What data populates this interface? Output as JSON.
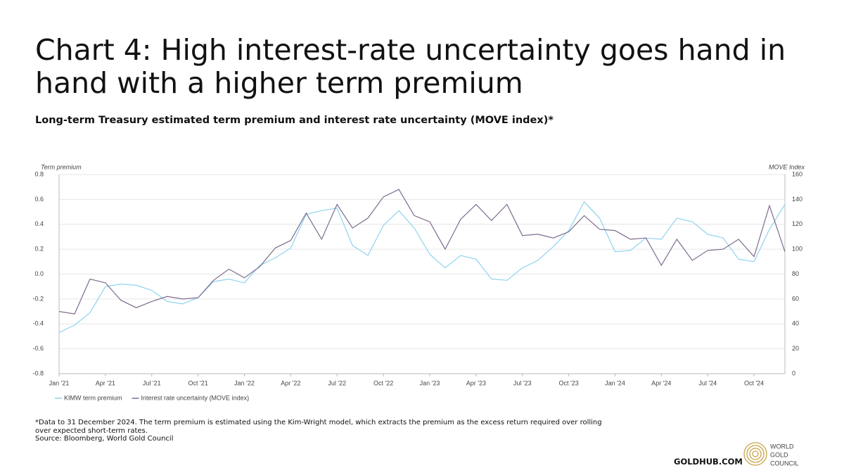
{
  "chart_data": {
    "type": "line",
    "title": "Chart 4: High interest-rate uncertainty goes hand in hand with a higher term premium",
    "subtitle": "Long-term Treasury estimated term premium and interest rate uncertainty (MOVE index)*",
    "ylabel": "Term premium",
    "y2label": "MOVE Index",
    "categories": [
      "Jan '21",
      null,
      null,
      "Apr '21",
      null,
      null,
      "Jul '21",
      null,
      null,
      "Oct '21",
      null,
      null,
      "Jan '22",
      null,
      null,
      "Apr '22",
      null,
      null,
      "Jul '22",
      null,
      null,
      "Oct '22",
      null,
      null,
      "Jan '23",
      null,
      null,
      "Apr '23",
      null,
      null,
      "Jul '23",
      null,
      null,
      "Oct '23",
      null,
      null,
      "Jan '24",
      null,
      null,
      "Apr '24",
      null,
      null,
      "Jul '24",
      null,
      null,
      "Oct '24",
      null,
      null
    ],
    "series": [
      {
        "name": "KIMW term premium",
        "color": "#8fd3f0",
        "values": [
          -0.47,
          -0.41,
          -0.31,
          -0.1,
          -0.08,
          -0.09,
          -0.13,
          -0.22,
          -0.24,
          -0.19,
          -0.06,
          -0.04,
          -0.07,
          0.07,
          0.13,
          0.21,
          0.48,
          0.51,
          0.53,
          0.23,
          0.15,
          0.39,
          0.51,
          0.37,
          0.16,
          0.05,
          0.15,
          0.12,
          -0.04,
          -0.05,
          0.05,
          0.11,
          0.22,
          0.35,
          0.58,
          0.45,
          0.18,
          0.19,
          0.29,
          0.28,
          0.45,
          0.42,
          0.32,
          0.29,
          0.12,
          0.1,
          0.36,
          0.56
        ]
      },
      {
        "name": "Interest rate uncertainty (MOVE index)",
        "color": "#7d6b8d",
        "axis": "y2",
        "values": [
          50,
          48,
          76,
          73,
          59,
          53,
          58,
          62,
          60,
          61,
          75,
          84,
          77,
          86,
          101,
          107,
          129,
          108,
          136,
          117,
          125,
          142,
          148,
          127,
          122,
          100,
          124,
          136,
          123,
          136,
          111,
          112,
          109,
          114,
          127,
          116,
          115,
          108,
          109,
          87,
          108,
          91,
          99,
          100,
          108,
          94,
          135,
          98
        ]
      }
    ],
    "ylim": [
      -0.8,
      0.8
    ],
    "yticks": [
      -0.8,
      -0.6,
      -0.4,
      -0.2,
      {
        "value": 0,
        "label": "0.0"
      },
      0.2,
      0.4,
      0.6,
      0.8
    ],
    "y2lim": [
      0,
      160
    ],
    "y2ticks": [
      0,
      20,
      40,
      60,
      80,
      100,
      120,
      140,
      160
    ],
    "grid": true,
    "legend": "bottom-left"
  },
  "footnote": "*Data to 31 December 2024. The term premium is estimated using the Kim-Wright model, which extracts the premium as the excess return required over rolling over expected short-term rates.",
  "source": "Source: Bloomberg, World Gold Council",
  "website": "GOLDHUB.COM",
  "logo": [
    "WORLD",
    "GOLD",
    "COUNCIL"
  ]
}
